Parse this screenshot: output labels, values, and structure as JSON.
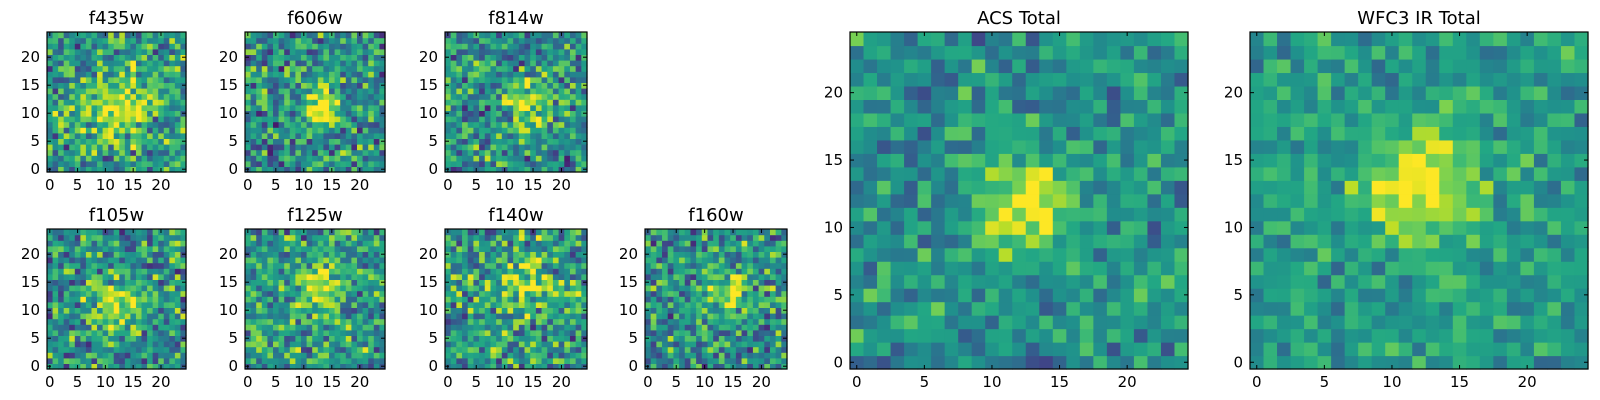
{
  "chart_data": [
    {
      "type": "heatmap",
      "title": "f435w",
      "grid_size": 25,
      "seed": 11,
      "peak": [
        12,
        11
      ],
      "sigma": 4.0,
      "amplitude": 0.35,
      "noise": 0.45,
      "base": 0.55,
      "xticks": [
        0,
        5,
        10,
        15,
        20
      ],
      "yticks": [
        0,
        5,
        10,
        15,
        20
      ],
      "xlim": [
        0,
        24
      ],
      "ylim": [
        0,
        24
      ],
      "colormap": "viridis"
    },
    {
      "type": "heatmap",
      "title": "f606w",
      "grid_size": 25,
      "seed": 23,
      "peak": [
        13,
        11
      ],
      "sigma": 2.5,
      "amplitude": 0.45,
      "noise": 0.45,
      "base": 0.5,
      "xticks": [
        0,
        5,
        10,
        15,
        20
      ],
      "yticks": [
        0,
        5,
        10,
        15,
        20
      ],
      "xlim": [
        0,
        24
      ],
      "ylim": [
        0,
        24
      ],
      "colormap": "viridis"
    },
    {
      "type": "heatmap",
      "title": "f814w",
      "grid_size": 25,
      "seed": 37,
      "peak": [
        14,
        12
      ],
      "sigma": 3.0,
      "amplitude": 0.4,
      "noise": 0.45,
      "base": 0.5,
      "xticks": [
        0,
        5,
        10,
        15,
        20
      ],
      "yticks": [
        0,
        5,
        10,
        15,
        20
      ],
      "xlim": [
        0,
        24
      ],
      "ylim": [
        0,
        24
      ],
      "colormap": "viridis"
    },
    {
      "type": "heatmap",
      "title": "f105w",
      "grid_size": 25,
      "seed": 41,
      "peak": [
        12,
        11
      ],
      "sigma": 3.5,
      "amplitude": 0.35,
      "noise": 0.45,
      "base": 0.5,
      "xticks": [
        0,
        5,
        10,
        15,
        20
      ],
      "yticks": [
        0,
        5,
        10,
        15,
        20
      ],
      "xlim": [
        0,
        24
      ],
      "ylim": [
        0,
        24
      ],
      "colormap": "viridis"
    },
    {
      "type": "heatmap",
      "title": "f125w",
      "grid_size": 25,
      "seed": 53,
      "peak": [
        13,
        14
      ],
      "sigma": 3.0,
      "amplitude": 0.35,
      "noise": 0.45,
      "base": 0.55,
      "xticks": [
        0,
        5,
        10,
        15,
        20
      ],
      "yticks": [
        0,
        5,
        10,
        15,
        20
      ],
      "xlim": [
        0,
        24
      ],
      "ylim": [
        0,
        24
      ],
      "colormap": "viridis"
    },
    {
      "type": "heatmap",
      "title": "f140w",
      "grid_size": 25,
      "seed": 67,
      "peak": [
        14,
        15
      ],
      "sigma": 3.5,
      "amplitude": 0.3,
      "noise": 0.45,
      "base": 0.55,
      "xticks": [
        0,
        5,
        10,
        15,
        20
      ],
      "yticks": [
        0,
        5,
        10,
        15,
        20
      ],
      "xlim": [
        0,
        24
      ],
      "ylim": [
        0,
        24
      ],
      "colormap": "viridis"
    },
    {
      "type": "heatmap",
      "title": "f160w",
      "grid_size": 25,
      "seed": 79,
      "peak": [
        14,
        13
      ],
      "sigma": 3.0,
      "amplitude": 0.35,
      "noise": 0.45,
      "base": 0.5,
      "xticks": [
        0,
        5,
        10,
        15,
        20
      ],
      "yticks": [
        0,
        5,
        10,
        15,
        20
      ],
      "xlim": [
        0,
        24
      ],
      "ylim": [
        0,
        24
      ],
      "colormap": "viridis"
    },
    {
      "type": "heatmap",
      "title": "ACS Total",
      "grid_size": 25,
      "seed": 97,
      "peak": [
        12.5,
        11.5
      ],
      "sigma": 2.5,
      "amplitude": 0.5,
      "noise": 0.3,
      "base": 0.5,
      "xticks": [
        0,
        5,
        10,
        15,
        20
      ],
      "yticks": [
        0,
        5,
        10,
        15,
        20
      ],
      "xlim": [
        0,
        24
      ],
      "ylim": [
        0,
        24
      ],
      "colormap": "viridis"
    },
    {
      "type": "heatmap",
      "title": "WFC3 IR Total",
      "grid_size": 25,
      "seed": 101,
      "peak": [
        12,
        13
      ],
      "sigma": 3.0,
      "amplitude": 0.45,
      "noise": 0.25,
      "base": 0.55,
      "xticks": [
        0,
        5,
        10,
        15,
        20
      ],
      "yticks": [
        0,
        5,
        10,
        15,
        20
      ],
      "xlim": [
        0,
        24
      ],
      "ylim": [
        0,
        24
      ],
      "colormap": "viridis"
    }
  ]
}
